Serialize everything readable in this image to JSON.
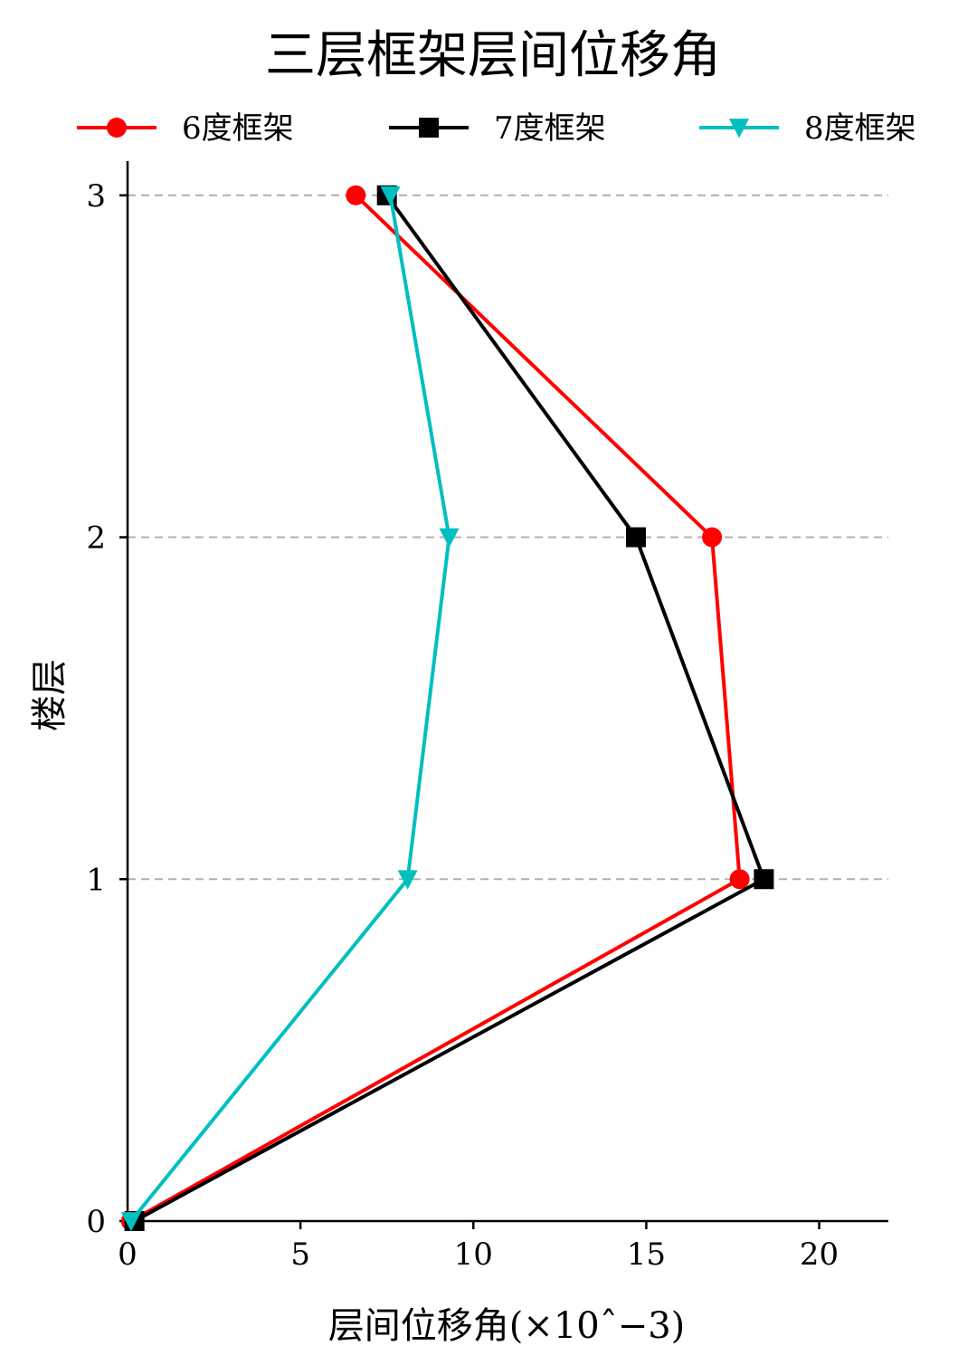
{
  "chart_data": {
    "type": "line",
    "title": "三层框架层间位移角",
    "xlabel": "层间位移角(×10ˆ−3)",
    "ylabel": "楼层",
    "xlim": [
      0,
      22
    ],
    "ylim": [
      0,
      3.1
    ],
    "x_ticks": [
      0,
      5,
      10,
      15,
      20
    ],
    "y_ticks": [
      0,
      1,
      2,
      3
    ],
    "grid": "horizontal dashed at y ticks",
    "legend_position": "top",
    "series": [
      {
        "name": "6度框架",
        "color": "#ff0000",
        "marker": "circle",
        "x": [
          0.1,
          17.7,
          16.9,
          6.6
        ],
        "y": [
          0,
          1,
          2,
          3
        ]
      },
      {
        "name": "7度框架",
        "color": "#000000",
        "marker": "square",
        "x": [
          0.2,
          18.4,
          14.7,
          7.5
        ],
        "y": [
          0,
          1,
          2,
          3
        ]
      },
      {
        "name": "8度框架",
        "color": "#00bfbf",
        "marker": "triangle-down",
        "x": [
          0.1,
          8.1,
          9.3,
          7.6
        ],
        "y": [
          0,
          1,
          2,
          3
        ]
      }
    ]
  }
}
